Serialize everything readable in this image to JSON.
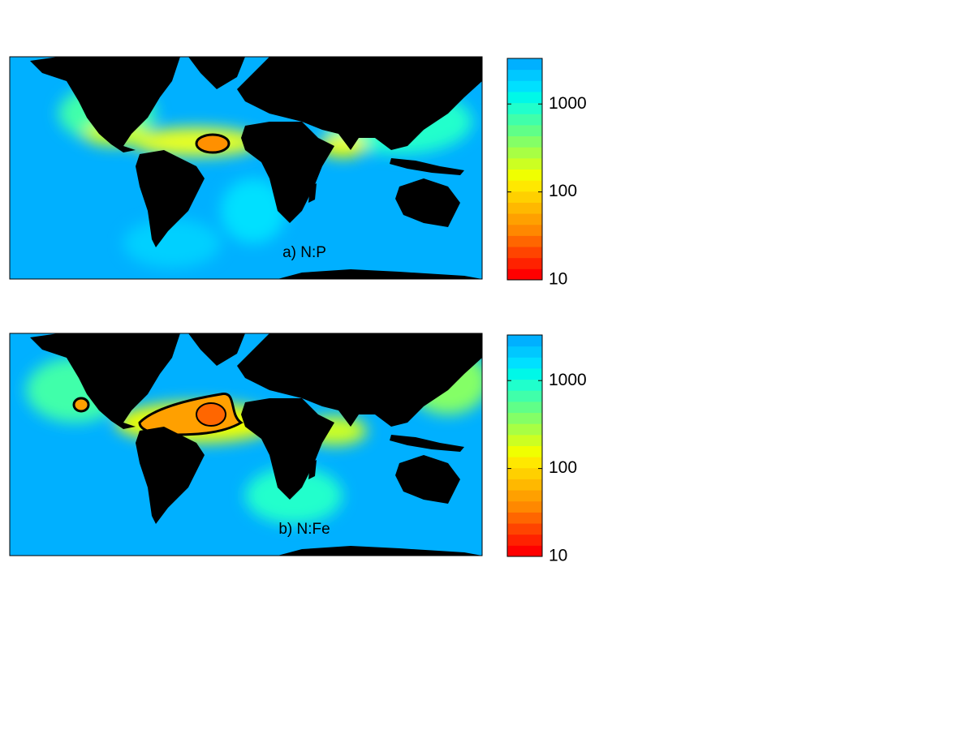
{
  "panels": [
    {
      "label": "a) N:P",
      "colorbar": {
        "scale": "log",
        "lim": [
          10,
          3300
        ],
        "ticks": [
          10,
          100,
          1000
        ],
        "colormap": [
          "#ff0000",
          "#ff2200",
          "#ff4400",
          "#ff6600",
          "#ff8800",
          "#ffa000",
          "#ffb800",
          "#ffd000",
          "#ffe800",
          "#f0ff00",
          "#ccff22",
          "#a8ff44",
          "#84ff66",
          "#60ff88",
          "#40ffaa",
          "#20ffcc",
          "#00f8e8",
          "#00e0ff",
          "#00c8ff",
          "#00b0ff"
        ]
      }
    },
    {
      "label": "b) N:Fe",
      "colorbar": {
        "scale": "log",
        "lim": [
          10,
          3300
        ],
        "ticks": [
          10,
          100,
          1000
        ],
        "colormap": [
          "#ff0000",
          "#ff2200",
          "#ff4400",
          "#ff6600",
          "#ff8800",
          "#ffa000",
          "#ffb800",
          "#ffd000",
          "#ffe800",
          "#f0ff00",
          "#ccff22",
          "#a8ff44",
          "#84ff66",
          "#60ff88",
          "#40ffaa",
          "#20ffcc",
          "#00f8e8",
          "#00e0ff",
          "#00c8ff",
          "#00b0ff"
        ]
      }
    }
  ]
}
